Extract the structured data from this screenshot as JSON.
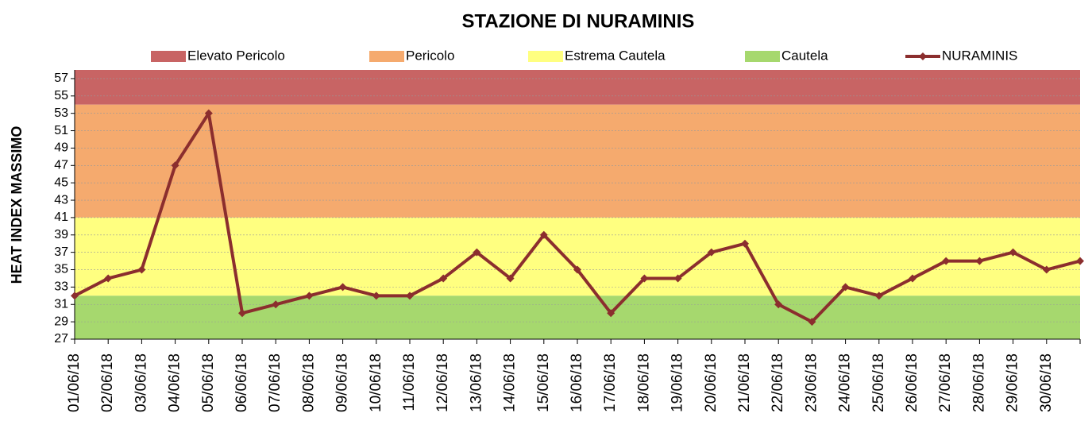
{
  "chart_data": {
    "type": "line",
    "title": "STAZIONE DI NURAMINIS",
    "y_label": "HEAT INDEX MASSIMO",
    "categories": [
      "01/06/18",
      "02/06/18",
      "03/06/18",
      "04/06/18",
      "05/06/18",
      "06/06/18",
      "07/06/18",
      "08/06/18",
      "09/06/18",
      "10/06/18",
      "11/06/18",
      "12/06/18",
      "13/06/18",
      "14/06/18",
      "15/06/18",
      "16/06/18",
      "17/06/18",
      "18/06/18",
      "19/06/18",
      "20/06/18",
      "21/06/18",
      "22/06/18",
      "23/06/18",
      "24/06/18",
      "25/06/18",
      "26/06/18",
      "27/06/18",
      "28/06/18",
      "29/06/18",
      "30/06/18",
      null
    ],
    "bands": [
      {
        "name": "Elevato Pericolo",
        "color": "#c86464",
        "from": 54,
        "to": 58
      },
      {
        "name": "Pericolo",
        "color": "#f5aa6e",
        "from": 41,
        "to": 54
      },
      {
        "name": "Estrema Cautela",
        "color": "#ffff80",
        "from": 32,
        "to": 41
      },
      {
        "name": "Cautela",
        "color": "#a6d86e",
        "from": 27,
        "to": 32
      }
    ],
    "series": [
      {
        "name": "NURAMINIS",
        "color": "#8b2e2e",
        "values": [
          32,
          34,
          35,
          47,
          53,
          30,
          31,
          32,
          33,
          32,
          32,
          34,
          37,
          34,
          39,
          35,
          30,
          34,
          34,
          37,
          38,
          31,
          29,
          33,
          32,
          34,
          36,
          36,
          37,
          35,
          36
        ]
      }
    ],
    "ylim": [
      27,
      58
    ],
    "yticks": [
      27,
      29,
      31,
      33,
      35,
      37,
      39,
      41,
      43,
      45,
      47,
      49,
      51,
      53,
      55,
      57
    ],
    "grid": true
  }
}
